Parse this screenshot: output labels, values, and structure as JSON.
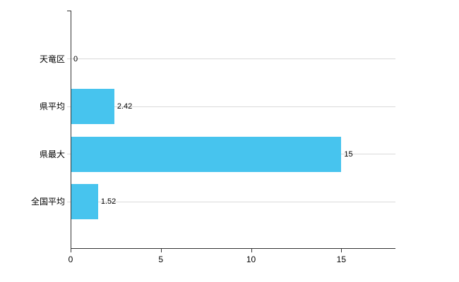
{
  "chart_data": {
    "type": "bar",
    "orientation": "horizontal",
    "title": "",
    "categories": [
      "天竜区",
      "県平均",
      "県最大",
      "全国平均"
    ],
    "values": [
      0,
      2.42,
      15,
      1.52
    ],
    "value_labels": [
      "0",
      "2.42",
      "15",
      "1.52"
    ],
    "xlim": [
      0,
      18
    ],
    "x_ticks": [
      0,
      5,
      10,
      15
    ],
    "x_tick_labels": [
      "0",
      "5",
      "10",
      "15"
    ],
    "bar_color": "#47c4ee",
    "axis_color": "#333333",
    "gridline_color": "#d9d9d9",
    "grid": "horizontal-category-lines",
    "legend": "none"
  }
}
